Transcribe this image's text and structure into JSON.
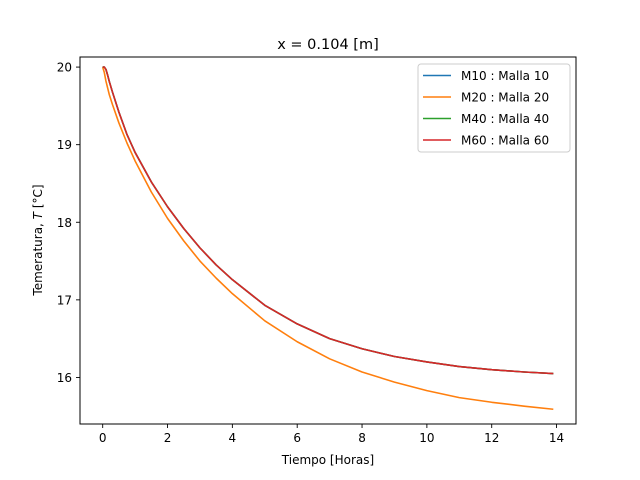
{
  "chart_data": {
    "type": "line",
    "title": "x = 0.104 [m]",
    "xlabel": "Tiempo  [Horas]",
    "ylabel_prefix": "Temeratura, ",
    "ylabel_var": "T",
    "ylabel_suffix": "  [°C]",
    "xlim": [
      -0.7,
      14.6
    ],
    "ylim": [
      15.4,
      20.13
    ],
    "xticks": [
      0,
      2,
      4,
      6,
      8,
      10,
      12,
      14
    ],
    "yticks": [
      16,
      17,
      18,
      19,
      20
    ],
    "grid": false,
    "legend_position": "top-right",
    "series": [
      {
        "name": "M10 : Malla 10",
        "color": "#1f77b4",
        "x": [
          0,
          0.05,
          0.1,
          0.15,
          0.2,
          0.3,
          0.5,
          0.75,
          1.0,
          1.5,
          2.0,
          2.5,
          3.0,
          3.5,
          4.0,
          5.0,
          6.0,
          7.0,
          8.0,
          9.0,
          10.0,
          11.0,
          12.0,
          13.0,
          13.9
        ],
        "y": [
          20.0,
          20.0,
          19.97,
          19.9,
          19.82,
          19.68,
          19.42,
          19.13,
          18.9,
          18.52,
          18.2,
          17.92,
          17.67,
          17.45,
          17.26,
          16.93,
          16.69,
          16.5,
          16.37,
          16.27,
          16.2,
          16.14,
          16.1,
          16.07,
          16.05
        ]
      },
      {
        "name": "M20 : Malla 20",
        "color": "#ff7f0e",
        "x": [
          0,
          0.05,
          0.1,
          0.2,
          0.3,
          0.5,
          0.75,
          1.0,
          1.5,
          2.0,
          2.5,
          3.0,
          3.5,
          4.0,
          5.0,
          6.0,
          7.0,
          8.0,
          9.0,
          10.0,
          11.0,
          12.0,
          13.0,
          13.9
        ],
        "y": [
          20.0,
          19.93,
          19.82,
          19.65,
          19.52,
          19.28,
          19.02,
          18.79,
          18.39,
          18.05,
          17.76,
          17.5,
          17.28,
          17.08,
          16.73,
          16.46,
          16.24,
          16.07,
          15.94,
          15.83,
          15.74,
          15.68,
          15.63,
          15.59
        ]
      },
      {
        "name": "M40 : Malla 40",
        "color": "#2ca02c",
        "x": [
          0,
          0.05,
          0.1,
          0.15,
          0.2,
          0.3,
          0.5,
          0.75,
          1.0,
          1.5,
          2.0,
          2.5,
          3.0,
          3.5,
          4.0,
          5.0,
          6.0,
          7.0,
          8.0,
          9.0,
          10.0,
          11.0,
          12.0,
          13.0,
          13.9
        ],
        "y": [
          20.0,
          20.0,
          19.97,
          19.9,
          19.82,
          19.68,
          19.42,
          19.13,
          18.9,
          18.52,
          18.2,
          17.92,
          17.67,
          17.45,
          17.26,
          16.93,
          16.69,
          16.5,
          16.37,
          16.27,
          16.2,
          16.14,
          16.1,
          16.07,
          16.05
        ]
      },
      {
        "name": "M60 : Malla 60",
        "color": "#d62728",
        "x": [
          0,
          0.05,
          0.1,
          0.15,
          0.2,
          0.3,
          0.5,
          0.75,
          1.0,
          1.5,
          2.0,
          2.5,
          3.0,
          3.5,
          4.0,
          5.0,
          6.0,
          7.0,
          8.0,
          9.0,
          10.0,
          11.0,
          12.0,
          13.0,
          13.9
        ],
        "y": [
          20.0,
          20.0,
          19.97,
          19.9,
          19.82,
          19.68,
          19.42,
          19.13,
          18.9,
          18.52,
          18.2,
          17.92,
          17.67,
          17.45,
          17.26,
          16.93,
          16.69,
          16.5,
          16.37,
          16.27,
          16.2,
          16.14,
          16.1,
          16.07,
          16.05
        ]
      }
    ]
  }
}
